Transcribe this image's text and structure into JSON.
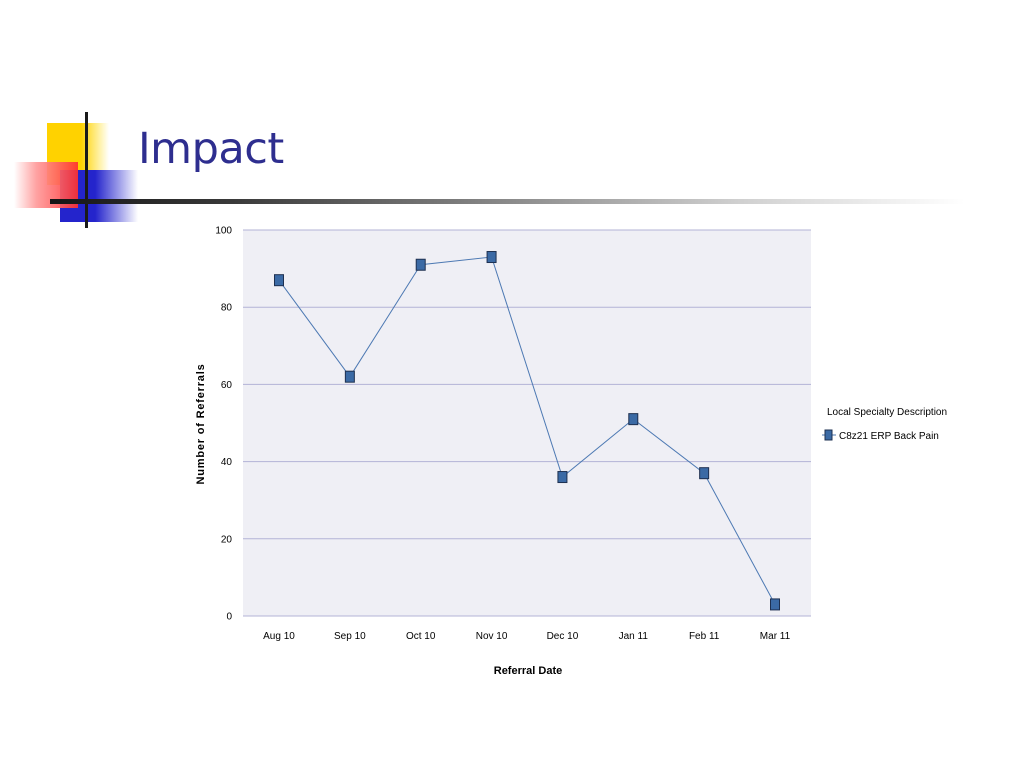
{
  "slide": {
    "title": "Impact"
  },
  "chart_data": {
    "type": "line",
    "categories": [
      "Aug 10",
      "Sep 10",
      "Oct 10",
      "Nov 10",
      "Dec 10",
      "Jan 11",
      "Feb 11",
      "Mar 11"
    ],
    "series": [
      {
        "name": "C8z21 ERP Back Pain",
        "values": [
          87,
          62,
          91,
          93,
          36,
          51,
          37,
          3
        ]
      }
    ],
    "xlabel": "Referral Date",
    "ylabel": "Number of Referrals",
    "ylim": [
      0,
      100
    ],
    "yticks": [
      "0",
      "20",
      "40",
      "60",
      "80",
      "100"
    ],
    "grid": true,
    "legend": {
      "title": "Local Specialty Description",
      "position": "right"
    },
    "colors": {
      "plot_background": "#efeff5",
      "gridline": "#b3b3d6",
      "line": "#4d79b3",
      "marker_fill": "#3b6aa5",
      "marker_stroke": "#1e3050"
    }
  }
}
